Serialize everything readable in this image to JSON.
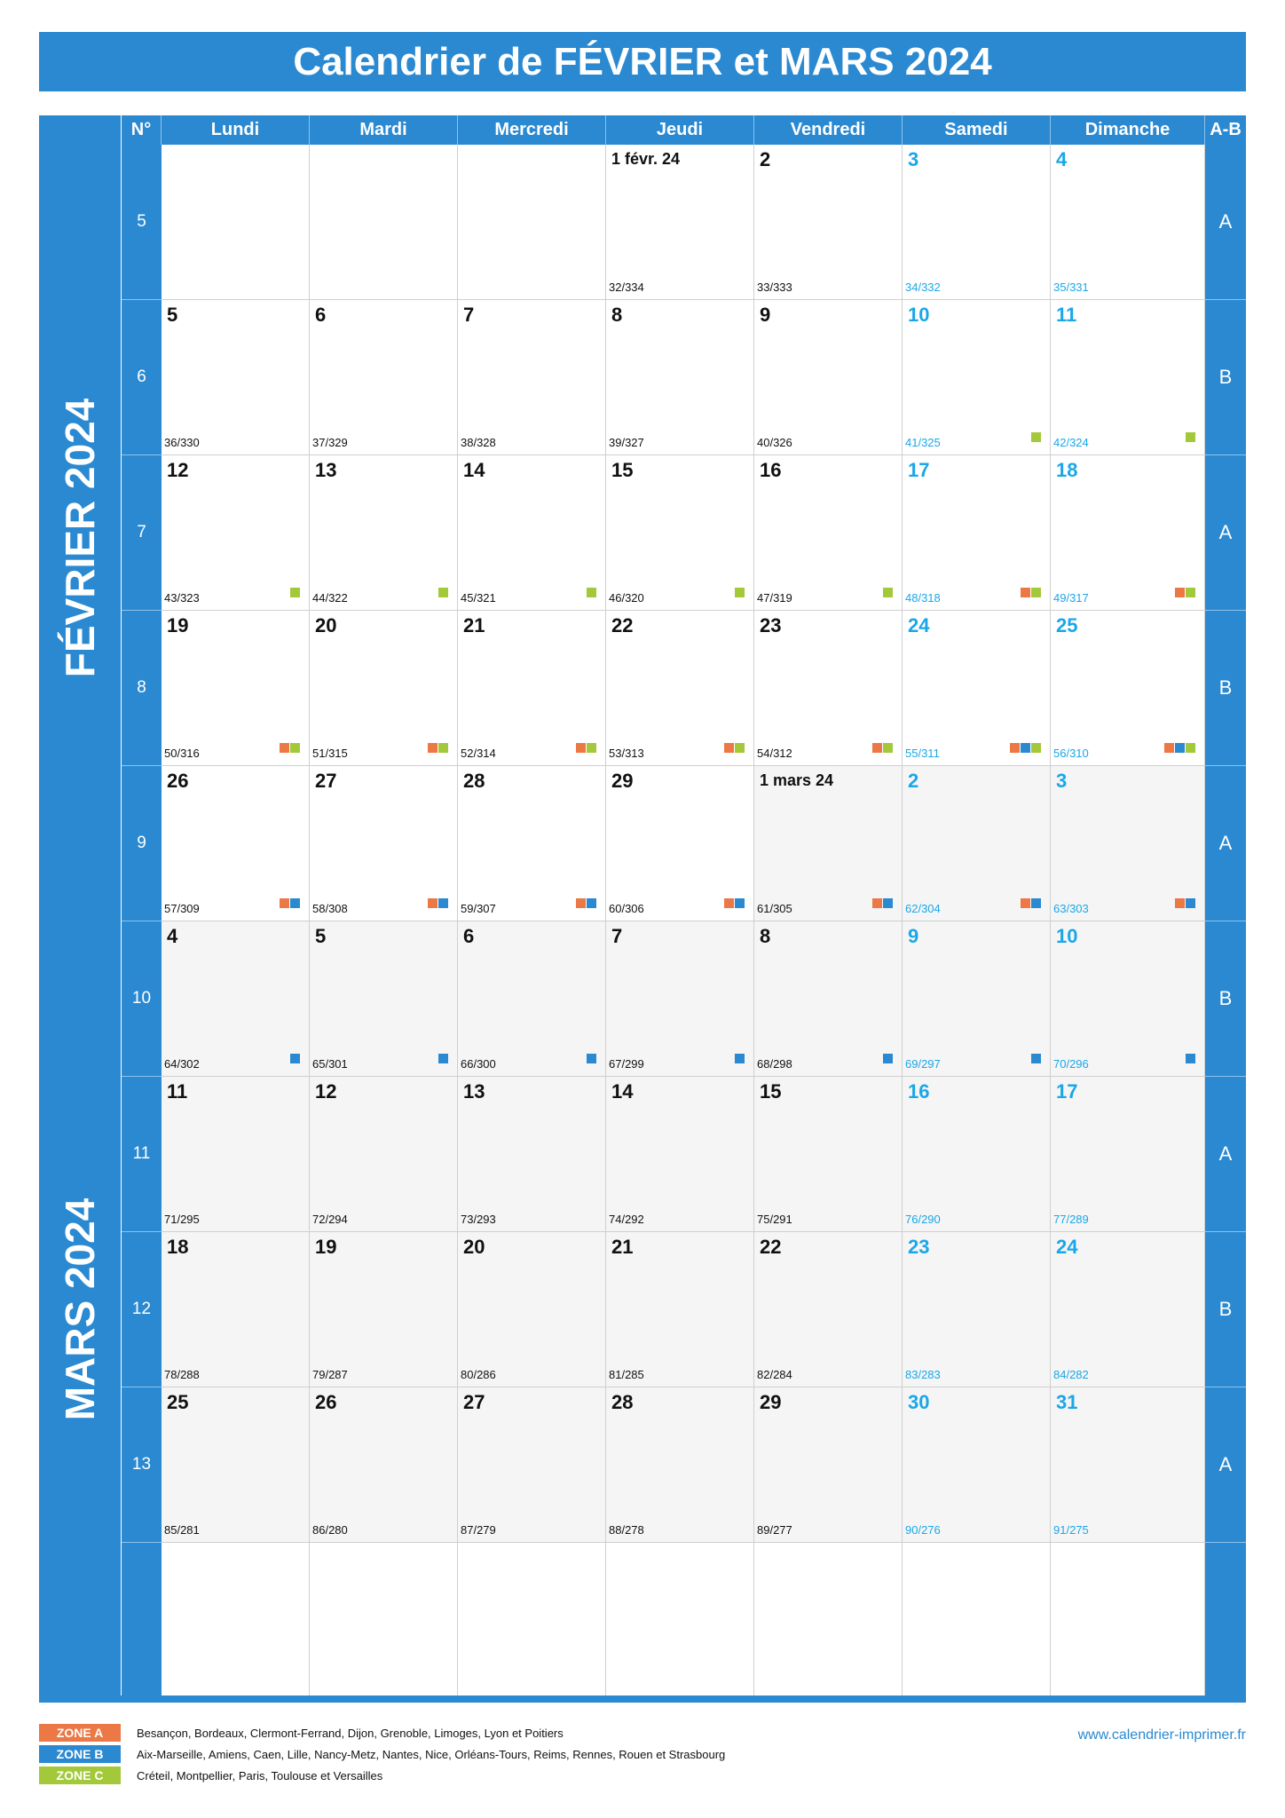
{
  "title": "Calendrier de FÉVRIER et MARS 2024",
  "headers": {
    "week_no": "N°",
    "days": [
      "Lundi",
      "Mardi",
      "Mercredi",
      "Jeudi",
      "Vendredi",
      "Samedi",
      "Dimanche"
    ],
    "ab": "A-B"
  },
  "months": [
    "FÉVRIER 2024",
    "MARS 2024"
  ],
  "colors": {
    "accent": "#2a89d1",
    "weekend_text": "#1aa7e8",
    "zone_a": "#eb7845",
    "zone_b": "#2a89d1",
    "zone_c": "#a3c93a",
    "march_bg": "#f5f5f5"
  },
  "weeks": [
    {
      "num": "5",
      "ab": "A",
      "days": [
        null,
        null,
        null,
        {
          "d": "1 févr. 24",
          "c": "32/334",
          "z": ""
        },
        {
          "d": "2",
          "c": "33/333",
          "z": ""
        },
        {
          "d": "3",
          "c": "34/332",
          "z": ""
        },
        {
          "d": "4",
          "c": "35/331",
          "z": ""
        }
      ]
    },
    {
      "num": "6",
      "ab": "B",
      "days": [
        {
          "d": "5",
          "c": "36/330",
          "z": ""
        },
        {
          "d": "6",
          "c": "37/329",
          "z": ""
        },
        {
          "d": "7",
          "c": "38/328",
          "z": ""
        },
        {
          "d": "8",
          "c": "39/327",
          "z": ""
        },
        {
          "d": "9",
          "c": "40/326",
          "z": ""
        },
        {
          "d": "10",
          "c": "41/325",
          "z": "C"
        },
        {
          "d": "11",
          "c": "42/324",
          "z": "C"
        }
      ]
    },
    {
      "num": "7",
      "ab": "A",
      "days": [
        {
          "d": "12",
          "c": "43/323",
          "z": "C"
        },
        {
          "d": "13",
          "c": "44/322",
          "z": "C"
        },
        {
          "d": "14",
          "c": "45/321",
          "z": "C"
        },
        {
          "d": "15",
          "c": "46/320",
          "z": "C"
        },
        {
          "d": "16",
          "c": "47/319",
          "z": "C"
        },
        {
          "d": "17",
          "c": "48/318",
          "z": "AC"
        },
        {
          "d": "18",
          "c": "49/317",
          "z": "AC"
        }
      ]
    },
    {
      "num": "8",
      "ab": "B",
      "days": [
        {
          "d": "19",
          "c": "50/316",
          "z": "AC"
        },
        {
          "d": "20",
          "c": "51/315",
          "z": "AC"
        },
        {
          "d": "21",
          "c": "52/314",
          "z": "AC"
        },
        {
          "d": "22",
          "c": "53/313",
          "z": "AC"
        },
        {
          "d": "23",
          "c": "54/312",
          "z": "AC"
        },
        {
          "d": "24",
          "c": "55/311",
          "z": "ABC"
        },
        {
          "d": "25",
          "c": "56/310",
          "z": "ABC"
        }
      ]
    },
    {
      "num": "9",
      "ab": "A",
      "days": [
        {
          "d": "26",
          "c": "57/309",
          "z": "AB"
        },
        {
          "d": "27",
          "c": "58/308",
          "z": "AB"
        },
        {
          "d": "28",
          "c": "59/307",
          "z": "AB"
        },
        {
          "d": "29",
          "c": "60/306",
          "z": "AB"
        },
        {
          "d": "1 mars 24",
          "c": "61/305",
          "z": "AB"
        },
        {
          "d": "2",
          "c": "62/304",
          "z": "AB"
        },
        {
          "d": "3",
          "c": "63/303",
          "z": "AB"
        }
      ]
    },
    {
      "num": "10",
      "ab": "B",
      "days": [
        {
          "d": "4",
          "c": "64/302",
          "z": "B"
        },
        {
          "d": "5",
          "c": "65/301",
          "z": "B"
        },
        {
          "d": "6",
          "c": "66/300",
          "z": "B"
        },
        {
          "d": "7",
          "c": "67/299",
          "z": "B"
        },
        {
          "d": "8",
          "c": "68/298",
          "z": "B"
        },
        {
          "d": "9",
          "c": "69/297",
          "z": "B"
        },
        {
          "d": "10",
          "c": "70/296",
          "z": "B"
        }
      ]
    },
    {
      "num": "11",
      "ab": "A",
      "days": [
        {
          "d": "11",
          "c": "71/295",
          "z": ""
        },
        {
          "d": "12",
          "c": "72/294",
          "z": ""
        },
        {
          "d": "13",
          "c": "73/293",
          "z": ""
        },
        {
          "d": "14",
          "c": "74/292",
          "z": ""
        },
        {
          "d": "15",
          "c": "75/291",
          "z": ""
        },
        {
          "d": "16",
          "c": "76/290",
          "z": ""
        },
        {
          "d": "17",
          "c": "77/289",
          "z": ""
        }
      ]
    },
    {
      "num": "12",
      "ab": "B",
      "days": [
        {
          "d": "18",
          "c": "78/288",
          "z": ""
        },
        {
          "d": "19",
          "c": "79/287",
          "z": ""
        },
        {
          "d": "20",
          "c": "80/286",
          "z": ""
        },
        {
          "d": "21",
          "c": "81/285",
          "z": ""
        },
        {
          "d": "22",
          "c": "82/284",
          "z": ""
        },
        {
          "d": "23",
          "c": "83/283",
          "z": ""
        },
        {
          "d": "24",
          "c": "84/282",
          "z": ""
        }
      ]
    },
    {
      "num": "13",
      "ab": "A",
      "days": [
        {
          "d": "25",
          "c": "85/281",
          "z": ""
        },
        {
          "d": "26",
          "c": "86/280",
          "z": ""
        },
        {
          "d": "27",
          "c": "87/279",
          "z": ""
        },
        {
          "d": "28",
          "c": "88/278",
          "z": ""
        },
        {
          "d": "29",
          "c": "89/277",
          "z": ""
        },
        {
          "d": "30",
          "c": "90/276",
          "z": ""
        },
        {
          "d": "31",
          "c": "91/275",
          "z": ""
        }
      ]
    },
    {
      "num": "",
      "ab": "",
      "days": [
        null,
        null,
        null,
        null,
        null,
        null,
        null
      ]
    }
  ],
  "legend": [
    {
      "tag": "ZONE A",
      "text": "Besançon, Bordeaux, Clermont-Ferrand, Dijon, Grenoble, Limoges, Lyon et Poitiers",
      "color": "#eb7845"
    },
    {
      "tag": "ZONE B",
      "text": "Aix-Marseille, Amiens, Caen, Lille, Nancy-Metz, Nantes, Nice, Orléans-Tours, Reims, Rennes, Rouen et Strasbourg",
      "color": "#2a89d1"
    },
    {
      "tag": "ZONE C",
      "text": "Créteil, Montpellier, Paris, Toulouse et Versailles",
      "color": "#a3c93a"
    }
  ],
  "website": "www.calendrier-imprimer.fr"
}
